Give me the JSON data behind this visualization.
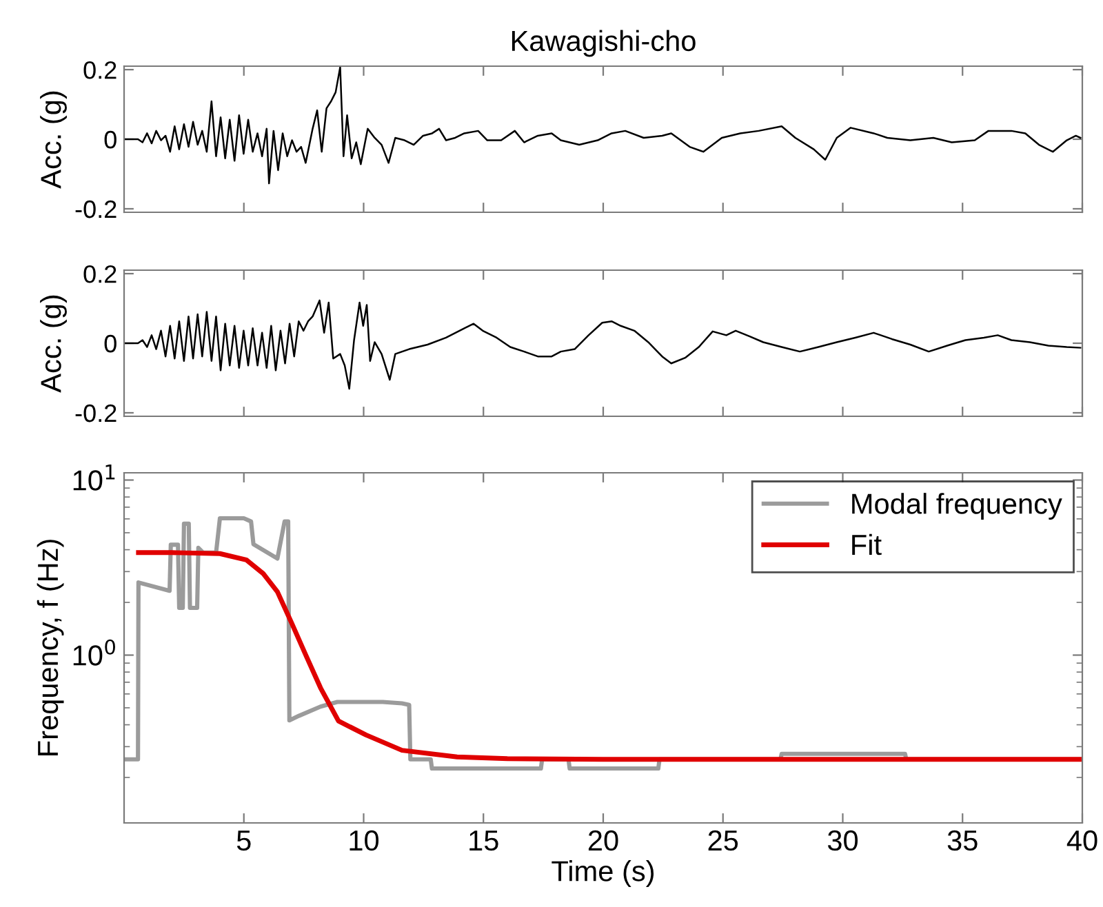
{
  "chart_data": [
    {
      "type": "line",
      "title": "Kawagishi-cho",
      "ylabel": "Acc. (g)",
      "xlim": [
        0,
        40
      ],
      "ylim": [
        -0.21,
        0.21
      ],
      "xticks": [
        5,
        10,
        15,
        20,
        25,
        30,
        35,
        40
      ],
      "yticks": [
        -0.2,
        0,
        0.2
      ],
      "tick_labels": "y",
      "grid": false,
      "legend": false,
      "series": [
        {
          "color": "#000000",
          "x": [
            0,
            0.58,
            0.77,
            0.96,
            1.15,
            1.34,
            1.54,
            1.73,
            1.92,
            2.11,
            2.3,
            2.5,
            2.69,
            2.88,
            3.07,
            3.26,
            3.45,
            3.65,
            3.84,
            4.03,
            4.22,
            4.41,
            4.61,
            4.8,
            4.99,
            5.18,
            5.37,
            5.57,
            5.76,
            5.95,
            6.05,
            6.24,
            6.43,
            6.62,
            6.81,
            7.01,
            7.2,
            7.39,
            7.58,
            7.87,
            8.06,
            8.25,
            8.45,
            8.64,
            8.83,
            9.02,
            9.16,
            9.31,
            9.5,
            9.69,
            9.88,
            10.17,
            10.46,
            10.75,
            11.04,
            11.32,
            11.71,
            12.09,
            12.48,
            12.86,
            13.15,
            13.44,
            13.82,
            14.2,
            14.78,
            15.16,
            15.74,
            16.31,
            16.7,
            17.27,
            17.85,
            18.23,
            19.0,
            19.77,
            20.35,
            20.92,
            21.69,
            22.46,
            22.84,
            23.61,
            24.18,
            24.95,
            25.72,
            26.49,
            27.45,
            28.02,
            28.79,
            29.27,
            29.75,
            30.33,
            31.29,
            31.86,
            32.82,
            33.78,
            34.55,
            35.51,
            36.08,
            37.04,
            37.62,
            38.19,
            38.77,
            39.35,
            39.73,
            39.92
          ],
          "values": [
            0,
            0,
            -0.009,
            0.017,
            -0.012,
            0.024,
            -0.003,
            0.01,
            -0.036,
            0.037,
            -0.029,
            0.043,
            -0.022,
            0.05,
            -0.016,
            0.024,
            -0.036,
            0.109,
            -0.049,
            0.063,
            -0.055,
            0.056,
            -0.062,
            0.069,
            -0.042,
            0.056,
            -0.036,
            0.017,
            -0.049,
            0.03,
            -0.127,
            0.024,
            -0.089,
            0.017,
            -0.049,
            -0.003,
            -0.036,
            -0.022,
            -0.068,
            0.03,
            0.083,
            -0.036,
            0.089,
            0.109,
            0.135,
            0.207,
            -0.049,
            0.069,
            -0.055,
            -0.009,
            -0.072,
            0.03,
            0.004,
            -0.016,
            -0.068,
            0.004,
            -0.003,
            -0.016,
            0.01,
            0.017,
            0.03,
            -0.003,
            0.004,
            0.017,
            0.024,
            -0.003,
            -0.003,
            0.024,
            -0.009,
            0.01,
            0.017,
            -0.003,
            -0.016,
            -0.003,
            0.017,
            0.024,
            0.004,
            0.01,
            0.017,
            -0.022,
            -0.036,
            0.004,
            0.017,
            0.024,
            0.037,
            0.004,
            -0.029,
            -0.059,
            0.004,
            0.033,
            0.017,
            0.004,
            -0.003,
            0.004,
            -0.009,
            -0.003,
            0.024,
            0.024,
            0.017,
            -0.016,
            -0.036,
            -0.003,
            0.01,
            0.004
          ]
        }
      ]
    },
    {
      "type": "line",
      "ylabel": "Acc. (g)",
      "xlim": [
        0,
        40
      ],
      "ylim": [
        -0.21,
        0.21
      ],
      "xticks": [
        5,
        10,
        15,
        20,
        25,
        30,
        35,
        40
      ],
      "yticks": [
        -0.2,
        0,
        0.2
      ],
      "tick_labels": "y",
      "grid": false,
      "legend": false,
      "series": [
        {
          "color": "#000000",
          "x": [
            0,
            0.58,
            0.77,
            0.96,
            1.15,
            1.34,
            1.54,
            1.73,
            1.92,
            2.11,
            2.3,
            2.5,
            2.69,
            2.88,
            3.07,
            3.26,
            3.45,
            3.65,
            3.84,
            4.03,
            4.22,
            4.41,
            4.61,
            4.8,
            4.99,
            5.18,
            5.37,
            5.57,
            5.76,
            5.95,
            6.14,
            6.33,
            6.53,
            6.72,
            6.91,
            7.1,
            7.29,
            7.49,
            7.68,
            7.87,
            8.16,
            8.35,
            8.54,
            8.73,
            9.02,
            9.21,
            9.4,
            9.6,
            9.83,
            9.98,
            10.13,
            10.27,
            10.46,
            10.75,
            11.09,
            11.32,
            11.9,
            12.67,
            13.44,
            14.2,
            14.59,
            14.97,
            15.55,
            16.12,
            16.7,
            17.27,
            17.85,
            18.23,
            18.81,
            19.39,
            19.96,
            20.35,
            20.73,
            21.3,
            21.88,
            22.46,
            22.84,
            23.42,
            23.99,
            24.57,
            25.14,
            25.53,
            26.1,
            26.68,
            27.45,
            28.21,
            28.98,
            29.75,
            30.52,
            31.29,
            32.05,
            32.82,
            33.59,
            34.36,
            35.12,
            35.89,
            36.47,
            37.04,
            37.81,
            38.58,
            39.35,
            39.92
          ],
          "values": [
            0,
            0,
            0.009,
            -0.011,
            0.023,
            -0.017,
            0.036,
            -0.038,
            0.05,
            -0.044,
            0.063,
            -0.051,
            0.077,
            -0.044,
            0.083,
            -0.038,
            0.09,
            -0.051,
            0.077,
            -0.078,
            0.056,
            -0.064,
            0.05,
            -0.071,
            0.036,
            -0.064,
            0.043,
            -0.064,
            0.03,
            -0.071,
            0.05,
            -0.078,
            0.036,
            -0.058,
            0.056,
            -0.038,
            0.063,
            0.036,
            0.063,
            0.077,
            0.123,
            0.03,
            0.117,
            -0.044,
            -0.031,
            -0.064,
            -0.131,
            0.009,
            0.117,
            0.05,
            0.11,
            -0.051,
            0.003,
            -0.031,
            -0.105,
            -0.031,
            -0.017,
            -0.004,
            0.016,
            0.043,
            0.056,
            0.036,
            0.016,
            -0.011,
            -0.024,
            -0.038,
            -0.038,
            -0.024,
            -0.017,
            0.023,
            0.059,
            0.063,
            0.05,
            0.036,
            0.003,
            -0.038,
            -0.058,
            -0.042,
            -0.011,
            0.034,
            0.023,
            0.036,
            0.02,
            0.003,
            -0.011,
            -0.024,
            -0.011,
            0.003,
            0.016,
            0.03,
            0.012,
            -0.004,
            -0.024,
            -0.007,
            0.009,
            0.016,
            0.023,
            0.009,
            0.003,
            -0.007,
            -0.011,
            -0.013
          ]
        }
      ]
    },
    {
      "type": "line",
      "xlabel": "Time (s)",
      "ylabel": "Frequency, f (Hz)",
      "log": "y",
      "xlim": [
        0,
        40
      ],
      "ylim": [
        0.11,
        11
      ],
      "xticks": [
        5,
        10,
        15,
        20,
        25,
        30,
        35,
        40
      ],
      "yticks": [
        {
          "value": 1,
          "label": "10$^{0}$"
        },
        {
          "value": 10,
          "label": "10$^{1}$"
        }
      ],
      "grid": false,
      "legend": "top right",
      "series": [
        {
          "name": "Modal frequency",
          "color": "#9b9b9b",
          "x": [
            0,
            0.58,
            0.6,
            1.9,
            1.95,
            2.25,
            2.3,
            2.45,
            2.5,
            2.7,
            2.75,
            3.05,
            3.1,
            3.3,
            3.84,
            4.0,
            5.0,
            5.3,
            5.4,
            6.4,
            6.7,
            6.85,
            6.9,
            7.3,
            8.2,
            8.9,
            10.8,
            11.6,
            11.9,
            11.95,
            12.8,
            12.85,
            17.4,
            17.45,
            18.55,
            18.6,
            22.3,
            22.35,
            27.4,
            27.45,
            32.6,
            32.65,
            40
          ],
          "values": [
            0.254,
            0.254,
            2.6,
            2.33,
            4.27,
            4.27,
            1.86,
            1.86,
            5.63,
            5.63,
            1.86,
            1.86,
            4.1,
            3.85,
            3.85,
            6.05,
            6.05,
            5.8,
            4.3,
            3.56,
            5.8,
            5.8,
            0.424,
            0.45,
            0.508,
            0.54,
            0.54,
            0.53,
            0.52,
            0.254,
            0.254,
            0.225,
            0.225,
            0.254,
            0.254,
            0.225,
            0.225,
            0.254,
            0.254,
            0.273,
            0.273,
            0.254,
            0.254
          ]
        },
        {
          "name": "Fit",
          "color": "#e00000",
          "x": [
            0.6,
            2,
            4.0,
            5.1,
            5.8,
            6.4,
            7.0,
            7.6,
            8.2,
            8.95,
            10.1,
            11.6,
            13.9,
            16,
            20,
            30,
            40
          ],
          "values": [
            3.85,
            3.85,
            3.8,
            3.5,
            2.93,
            2.3,
            1.52,
            0.99,
            0.65,
            0.42,
            0.35,
            0.286,
            0.262,
            0.256,
            0.254,
            0.254,
            0.254
          ]
        }
      ]
    }
  ]
}
